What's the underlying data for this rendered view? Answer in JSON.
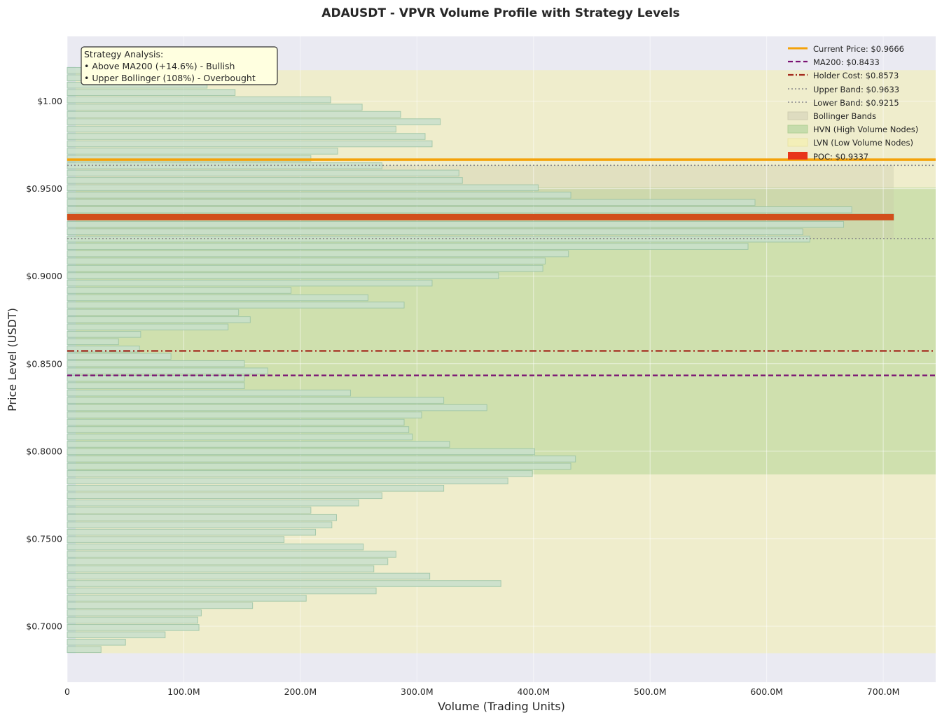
{
  "chart_data": {
    "type": "bar",
    "orientation": "horizontal",
    "title": "ADAUSDT - VPVR Volume Profile with Strategy Levels",
    "xlabel": "Volume (Trading Units)",
    "ylabel": "Price Level (USDT)",
    "xlim": [
      0,
      745
    ],
    "ylim": [
      0.668,
      1.037
    ],
    "x_ticks": [
      0,
      100,
      200,
      300,
      400,
      500,
      600,
      700
    ],
    "x_tick_labels": [
      "0",
      "100.0M",
      "200.0M",
      "300.0M",
      "400.0M",
      "500.0M",
      "600.0M",
      "700.0M"
    ],
    "y_ticks": [
      0.7,
      0.75,
      0.8,
      0.85,
      0.9,
      0.95,
      1.0
    ],
    "y_tick_labels": [
      "$0.7000",
      "$0.7500",
      "$0.8000",
      "$0.8500",
      "$0.9000",
      "$0.9500",
      "$1.00"
    ],
    "grid": true,
    "legend_position": "top-right",
    "volume_profile": {
      "bin_low": 0.6846,
      "bin_high": 1.0196,
      "bins_low_to_high": [
        29,
        50,
        84,
        113,
        112,
        115,
        159,
        205,
        265,
        372,
        311,
        263,
        275,
        282,
        254,
        186,
        213,
        227,
        231,
        209,
        250,
        270,
        323,
        378,
        399,
        432,
        436,
        401,
        328,
        296,
        293,
        289,
        304,
        360,
        323,
        243,
        152,
        152,
        172,
        152,
        89,
        62,
        44,
        63,
        138,
        157,
        147,
        289,
        258,
        192,
        313,
        370,
        408,
        410,
        430,
        584,
        637,
        631,
        666,
        709,
        673,
        590,
        432,
        404,
        339,
        336,
        270,
        209,
        232,
        313,
        307,
        282,
        320,
        286,
        253,
        226,
        144,
        120,
        90,
        60
      ]
    },
    "levels": [
      {
        "key": "current_price",
        "value": 0.9666,
        "label": "Current Price: $0.9666",
        "color": "#f4a20a",
        "style": "solid"
      },
      {
        "key": "ma200",
        "value": 0.8433,
        "label": "MA200: $0.8433",
        "color": "#7a1273",
        "style": "dashed"
      },
      {
        "key": "holder_cost",
        "value": 0.8573,
        "label": "Holder Cost: $0.8573",
        "color": "#a3271b",
        "style": "dashdot"
      },
      {
        "key": "upper_band",
        "value": 0.9633,
        "label": "Upper Band: $0.9633",
        "color": "#8a8a8a",
        "style": "dotted"
      },
      {
        "key": "lower_band",
        "value": 0.9215,
        "label": "Lower Band: $0.9215",
        "color": "#8a8a8a",
        "style": "dotted"
      }
    ],
    "zones": {
      "bollinger": {
        "low": 0.9215,
        "high": 0.9633,
        "label": "Bollinger Bands",
        "color": "#c8c8a8"
      },
      "hvn": {
        "low": 0.7867,
        "high": 0.9507,
        "label": "HVN (High Volume Nodes)",
        "color": "#b5d596"
      },
      "lvn": {
        "low": 0.6846,
        "high": 1.0177,
        "label": "LVN (Low Volume Nodes)",
        "color": "#f1efb3"
      }
    },
    "poc": {
      "value": 0.9337,
      "volume": 709,
      "label": "POC: $0.9337",
      "color": "#e8351a",
      "bar_color": "#d24e1b"
    },
    "annotation": {
      "lines": [
        "Strategy Analysis:",
        "• Above MA200 (+14.6%) - Bullish",
        "• Upper Bollinger (108%) - Overbought"
      ]
    },
    "colors": {
      "plot_bg": "#eaeaf2",
      "bar_fill": "#c9e0cc",
      "bar_stroke": "#9ac3a6",
      "grid": "#ffffff"
    }
  }
}
